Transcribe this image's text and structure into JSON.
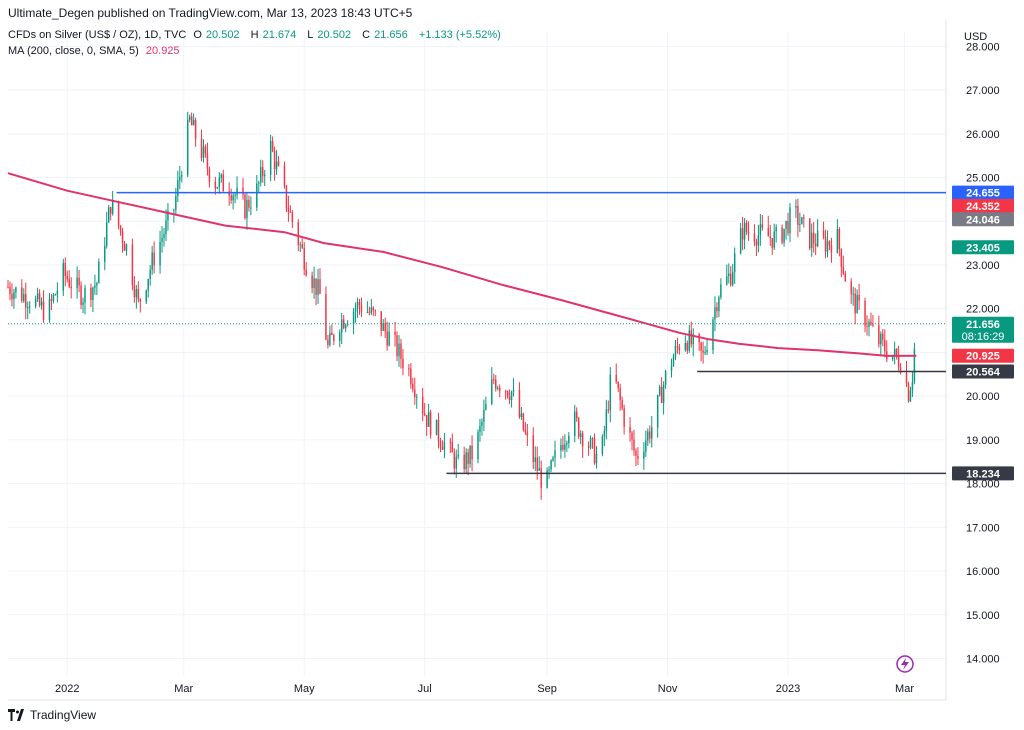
{
  "header": {
    "publisher": "Ultimate_Degen published on TradingView.com, Mar 13, 2023 18:43 UTC+5"
  },
  "legend": {
    "symbol": "CFDs on Silver (US$ / OZ), 1D, TVC",
    "open_label": "O",
    "open": "20.502",
    "high_label": "H",
    "high": "21.674",
    "low_label": "L",
    "low": "20.502",
    "close_label": "C",
    "close": "21.656",
    "change": "+1.133 (+5.52%)",
    "ma_label": "MA (200, close, 0, SMA, 5)",
    "ma_value": "20.925"
  },
  "currency": "USD",
  "footer": {
    "brand": "TradingView"
  },
  "colors": {
    "up": "#089981",
    "down": "#f23645",
    "ma": "#e0336b",
    "blue_level": "#2962ff",
    "gray_level": "#363a45",
    "grid": "#f0f3fa"
  },
  "chart_data": {
    "type": "candlestick",
    "ylim": [
      13.6,
      28.1
    ],
    "y_ticks": [
      "14.000",
      "15.000",
      "16.000",
      "17.000",
      "18.000",
      "19.000",
      "20.000",
      "21.000",
      "22.000",
      "23.000",
      "24.000",
      "25.000",
      "26.000",
      "27.000",
      "28.000"
    ],
    "x_ticks": [
      {
        "label": "2022",
        "day": 30
      },
      {
        "label": "Mar",
        "day": 89
      },
      {
        "label": "May",
        "day": 150
      },
      {
        "label": "Jul",
        "day": 211
      },
      {
        "label": "Sep",
        "day": 273
      },
      {
        "label": "Nov",
        "day": 334
      },
      {
        "label": "2023",
        "day": 395
      },
      {
        "label": "Mar",
        "day": 454
      }
    ],
    "x_range_days": [
      0,
      475
    ],
    "anchors": [
      [
        0,
        22.5
      ],
      [
        12,
        22.2
      ],
      [
        20,
        21.9
      ],
      [
        28,
        22.8
      ],
      [
        38,
        22.3
      ],
      [
        45,
        22.6
      ],
      [
        52,
        24.4
      ],
      [
        60,
        23.4
      ],
      [
        66,
        22.1
      ],
      [
        74,
        23.2
      ],
      [
        84,
        24.3
      ],
      [
        92,
        26.3
      ],
      [
        98,
        25.6
      ],
      [
        104,
        24.9
      ],
      [
        112,
        24.8
      ],
      [
        120,
        24.3
      ],
      [
        126,
        24.7
      ],
      [
        133,
        25.7
      ],
      [
        140,
        24.6
      ],
      [
        146,
        23.7
      ],
      [
        152,
        22.9
      ],
      [
        158,
        22.3
      ],
      [
        162,
        21.1
      ],
      [
        168,
        21.7
      ],
      [
        178,
        22.1
      ],
      [
        186,
        21.8
      ],
      [
        194,
        21.3
      ],
      [
        204,
        20.5
      ],
      [
        212,
        19.5
      ],
      [
        220,
        19.0
      ],
      [
        228,
        18.4
      ],
      [
        236,
        18.7
      ],
      [
        246,
        20.4
      ],
      [
        255,
        20.1
      ],
      [
        264,
        18.8
      ],
      [
        272,
        17.9
      ],
      [
        278,
        18.7
      ],
      [
        286,
        19.5
      ],
      [
        294,
        18.9
      ],
      [
        300,
        18.5
      ],
      [
        306,
        20.6
      ],
      [
        312,
        19.5
      ],
      [
        318,
        18.6
      ],
      [
        326,
        19.3
      ],
      [
        334,
        20.6
      ],
      [
        342,
        21.4
      ],
      [
        352,
        20.9
      ],
      [
        360,
        22.4
      ],
      [
        366,
        22.8
      ],
      [
        372,
        23.8
      ],
      [
        380,
        23.7
      ],
      [
        390,
        23.6
      ],
      [
        398,
        24.2
      ],
      [
        406,
        23.6
      ],
      [
        414,
        23.5
      ],
      [
        420,
        23.6
      ],
      [
        426,
        22.3
      ],
      [
        434,
        21.8
      ],
      [
        440,
        21.3
      ],
      [
        446,
        21.0
      ],
      [
        452,
        20.8
      ],
      [
        456,
        20.1
      ],
      [
        458,
        20.5
      ],
      [
        460,
        21.656
      ]
    ],
    "series": [
      {
        "name": "MA (200, close, 0, SMA, 5)",
        "type": "line",
        "points": [
          [
            0,
            25.1
          ],
          [
            30,
            24.7
          ],
          [
            60,
            24.4
          ],
          [
            90,
            24.1
          ],
          [
            110,
            23.9
          ],
          [
            140,
            23.75
          ],
          [
            160,
            23.5
          ],
          [
            190,
            23.3
          ],
          [
            220,
            22.95
          ],
          [
            250,
            22.55
          ],
          [
            280,
            22.2
          ],
          [
            300,
            21.95
          ],
          [
            320,
            21.7
          ],
          [
            340,
            21.45
          ],
          [
            355,
            21.3
          ],
          [
            370,
            21.2
          ],
          [
            390,
            21.1
          ],
          [
            410,
            21.05
          ],
          [
            430,
            20.98
          ],
          [
            445,
            20.92
          ],
          [
            460,
            20.925
          ]
        ]
      }
    ],
    "levels": [
      {
        "value": 24.655,
        "label": "24.655",
        "color": "#2962ff",
        "from_day": 55,
        "to_day": 475,
        "line": true
      },
      {
        "value": 20.564,
        "label": "20.564",
        "color": "#363a45",
        "from_day": 349,
        "to_day": 475,
        "line": true
      },
      {
        "value": 18.234,
        "label": "18.234",
        "color": "#363a45",
        "from_day": 222,
        "to_day": 475,
        "line": true
      }
    ],
    "price_tags": [
      {
        "value": 24.352,
        "label": "24.352",
        "color": "#f23645"
      },
      {
        "value": 24.046,
        "label": "24.046",
        "color": "#787b86"
      },
      {
        "value": 23.405,
        "label": "23.405",
        "color": "#089981"
      },
      {
        "value": 21.656,
        "label": "21.656",
        "color": "#089981",
        "sub": "08:16:29"
      },
      {
        "value": 20.925,
        "label": "20.925",
        "color": "#f23645"
      }
    ],
    "current_price": 21.656
  }
}
